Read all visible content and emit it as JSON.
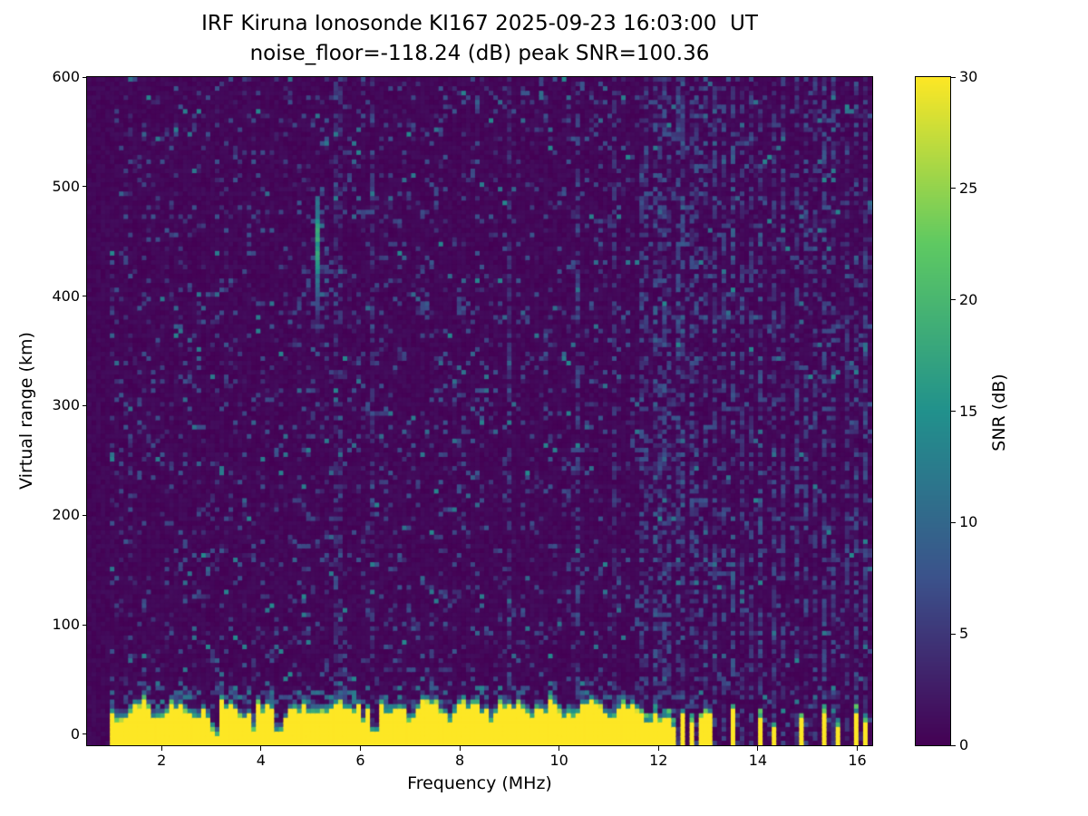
{
  "chart_data": {
    "type": "heatmap",
    "title": "IRF Kiruna Ionosonde KI167 2025-09-23 16:03:00  UT",
    "subtitle": "noise_floor=-118.24 (dB) peak SNR=100.36",
    "xlabel": "Frequency (MHz)",
    "ylabel": "Virtual range (km)",
    "xlim": [
      0.5,
      16.3
    ],
    "ylim": [
      -10,
      600
    ],
    "xticks": [
      2,
      4,
      6,
      8,
      10,
      12,
      14,
      16
    ],
    "yticks": [
      0,
      100,
      200,
      300,
      400,
      500,
      600
    ],
    "colorbar": {
      "label": "SNR (dB)",
      "min": 0,
      "max": 30,
      "ticks": [
        0,
        5,
        10,
        15,
        20,
        25,
        30
      ]
    },
    "colormap": {
      "name": "viridis",
      "stops": [
        "#440154",
        "#3b528b",
        "#21918c",
        "#5ec962",
        "#fde725"
      ]
    },
    "noise_floor_db": -118.24,
    "peak_snr_db": 100.36,
    "grid": {
      "cols": 172,
      "rows": 146
    },
    "features": {
      "sounding_start_mhz": 0.95,
      "ground_clutter": {
        "freq_range_mhz": [
          0.95,
          11.62
        ],
        "top_km_base": 28,
        "top_km_jitter": 14,
        "snr_db": 30,
        "notches_mhz": [
          3.05,
          3.85,
          4.35,
          6.3
        ]
      },
      "echo_trace": {
        "freq_mhz": 5.12,
        "halfwidth_mhz": 0.06,
        "range_km": [
          355,
          492
        ],
        "peak_range_km": 450,
        "peak_snr_db": 21
      },
      "spots": [
        {
          "f": 7.3,
          "r": 388,
          "s": 9
        },
        {
          "f": 8.0,
          "r": 392,
          "s": 8
        }
      ],
      "noise_speckle": {
        "density": 0.11,
        "snr_db_range": [
          2,
          8
        ]
      },
      "rfi_stripes": [
        {
          "f": 5.55,
          "s": 3
        },
        {
          "f": 6.25,
          "s": 4
        },
        {
          "f": 9.0,
          "s": 3
        },
        {
          "f": 10.35,
          "s": 5
        },
        {
          "f": 11.15,
          "s": 4
        },
        {
          "f": 11.68,
          "s": 6
        },
        {
          "f": 11.78,
          "s": 5
        },
        {
          "f": 11.9,
          "s": 7
        },
        {
          "f": 12.0,
          "s": 5
        },
        {
          "f": 12.12,
          "s": 6
        },
        {
          "f": 12.25,
          "s": 5
        },
        {
          "f": 12.38,
          "s": 6
        },
        {
          "f": 12.52,
          "s": 7
        },
        {
          "f": 12.65,
          "s": 5
        },
        {
          "f": 12.78,
          "s": 6
        },
        {
          "f": 12.95,
          "s": 6
        },
        {
          "f": 13.1,
          "s": 5
        },
        {
          "f": 13.3,
          "s": 5
        },
        {
          "f": 13.5,
          "s": 7
        },
        {
          "f": 13.7,
          "s": 4
        },
        {
          "f": 13.9,
          "s": 4
        },
        {
          "f": 14.08,
          "s": 7
        },
        {
          "f": 14.3,
          "s": 5
        },
        {
          "f": 14.55,
          "s": 5
        },
        {
          "f": 14.75,
          "s": 4
        },
        {
          "f": 14.95,
          "s": 6
        },
        {
          "f": 15.15,
          "s": 4
        },
        {
          "f": 15.35,
          "s": 6
        },
        {
          "f": 15.55,
          "s": 5
        },
        {
          "f": 15.8,
          "s": 4
        },
        {
          "f": 16.0,
          "s": 6
        },
        {
          "f": 16.18,
          "s": 5
        }
      ],
      "bottom_bars": [
        {
          "f": 11.68,
          "h": 24
        },
        {
          "f": 11.8,
          "h": 18
        },
        {
          "f": 11.92,
          "h": 26
        },
        {
          "f": 12.05,
          "h": 16
        },
        {
          "f": 12.18,
          "h": 22
        },
        {
          "f": 12.32,
          "h": 14
        },
        {
          "f": 12.5,
          "h": 24
        },
        {
          "f": 12.68,
          "h": 18
        },
        {
          "f": 12.85,
          "h": 20
        },
        {
          "f": 13.0,
          "h": 24
        },
        {
          "f": 13.5,
          "h": 28
        },
        {
          "f": 14.07,
          "h": 22
        },
        {
          "f": 14.35,
          "h": 12
        },
        {
          "f": 14.9,
          "h": 20
        },
        {
          "f": 15.32,
          "h": 26
        },
        {
          "f": 15.6,
          "h": 14
        },
        {
          "f": 16.0,
          "h": 26
        },
        {
          "f": 16.17,
          "h": 18
        }
      ]
    }
  }
}
